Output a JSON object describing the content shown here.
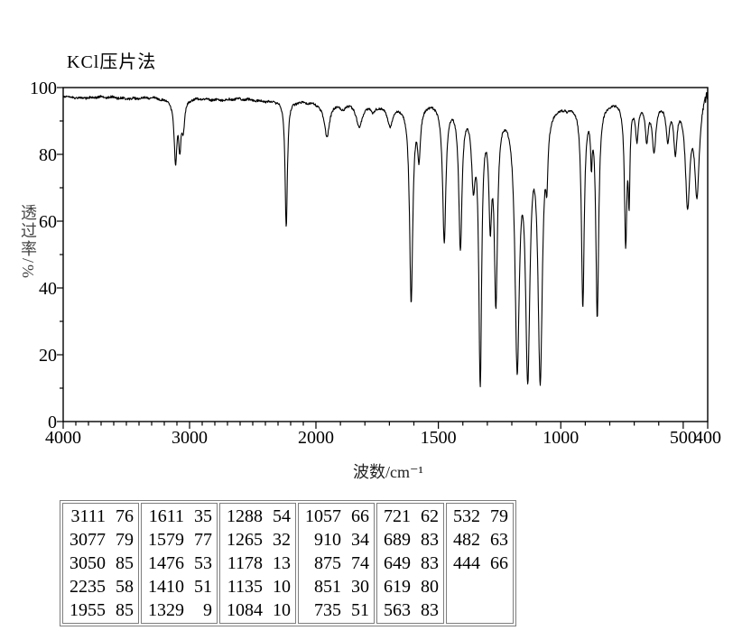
{
  "chart_data": {
    "type": "line",
    "title": "KCl压片法",
    "xlabel": "波数/cm⁻¹",
    "ylabel": "透过率/%",
    "x_axis": {
      "range": [
        4000,
        400
      ],
      "direction": "decreasing-right",
      "scale_break_at": 2000,
      "major_ticks": [
        4000,
        3000,
        2000,
        1500,
        1000,
        500,
        400
      ],
      "minor_tick_step": 100
    },
    "y_axis": {
      "range": [
        0,
        100
      ],
      "major_ticks": [
        0,
        20,
        40,
        60,
        80,
        100
      ],
      "minor_tick_step": 10
    },
    "baseline_transmittance": 97,
    "series": [
      {
        "name": "IR transmittance spectrum",
        "peaks_wavenumber_transmittance": [
          [
            3111,
            76
          ],
          [
            3077,
            79
          ],
          [
            3050,
            85
          ],
          [
            2235,
            58
          ],
          [
            1955,
            85
          ],
          [
            1611,
            35
          ],
          [
            1579,
            77
          ],
          [
            1476,
            53
          ],
          [
            1410,
            51
          ],
          [
            1329,
            9
          ],
          [
            1288,
            54
          ],
          [
            1265,
            32
          ],
          [
            1178,
            13
          ],
          [
            1135,
            10
          ],
          [
            1084,
            10
          ],
          [
            1057,
            66
          ],
          [
            910,
            34
          ],
          [
            875,
            74
          ],
          [
            851,
            30
          ],
          [
            735,
            51
          ],
          [
            721,
            62
          ],
          [
            689,
            83
          ],
          [
            649,
            83
          ],
          [
            619,
            80
          ],
          [
            563,
            83
          ],
          [
            532,
            79
          ],
          [
            482,
            63
          ],
          [
            444,
            66
          ]
        ]
      }
    ],
    "minor_unlabeled_features": [
      [
        1890,
        93
      ],
      [
        1823,
        88
      ],
      [
        1767,
        92
      ],
      [
        1697,
        88
      ],
      [
        1357,
        67
      ],
      [
        973,
        93
      ]
    ]
  },
  "peak_table": {
    "columns": [
      [
        [
          "3111",
          "76"
        ],
        [
          "3077",
          "79"
        ],
        [
          "3050",
          "85"
        ],
        [
          "2235",
          "58"
        ],
        [
          "1955",
          "85"
        ]
      ],
      [
        [
          "1611",
          "35"
        ],
        [
          "1579",
          "77"
        ],
        [
          "1476",
          "53"
        ],
        [
          "1410",
          "51"
        ],
        [
          "1329",
          "9"
        ]
      ],
      [
        [
          "1288",
          "54"
        ],
        [
          "1265",
          "32"
        ],
        [
          "1178",
          "13"
        ],
        [
          "1135",
          "10"
        ],
        [
          "1084",
          "10"
        ]
      ],
      [
        [
          "1057",
          "66"
        ],
        [
          "910",
          "34"
        ],
        [
          "875",
          "74"
        ],
        [
          "851",
          "30"
        ],
        [
          "735",
          "51"
        ]
      ],
      [
        [
          "721",
          "62"
        ],
        [
          "689",
          "83"
        ],
        [
          "649",
          "83"
        ],
        [
          "619",
          "80"
        ],
        [
          "563",
          "83"
        ]
      ],
      [
        [
          "532",
          "79"
        ],
        [
          "482",
          "63"
        ],
        [
          "444",
          "66"
        ]
      ]
    ]
  },
  "colors": {
    "curve": "#000000",
    "frame": "#000000",
    "table_border": "#7e7e7e",
    "text": "#000000"
  }
}
